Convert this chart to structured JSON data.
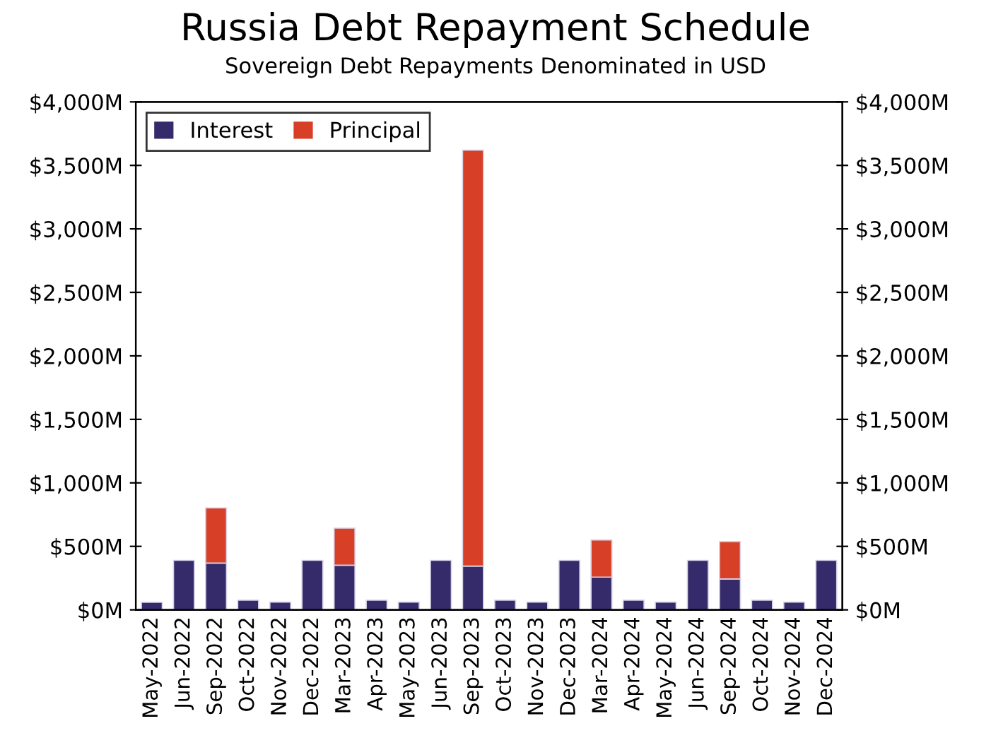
{
  "chart_data": {
    "type": "bar",
    "stacked": true,
    "title": "Russia Debt Repayment Schedule",
    "subtitle": "Sovereign Debt Repayments Denominated in USD",
    "categories": [
      "May-2022",
      "Jun-2022",
      "Sep-2022",
      "Oct-2022",
      "Nov-2022",
      "Dec-2022",
      "Mar-2023",
      "Apr-2023",
      "May-2023",
      "Jun-2023",
      "Sep-2023",
      "Oct-2023",
      "Nov-2023",
      "Dec-2023",
      "Mar-2024",
      "Apr-2024",
      "May-2024",
      "Jun-2024",
      "Sep-2024",
      "Oct-2024",
      "Nov-2024",
      "Dec-2024"
    ],
    "series": [
      {
        "name": "Interest",
        "color": "#352a6a",
        "values": [
          60,
          390,
          368,
          76,
          61,
          390,
          352,
          76,
          61,
          390,
          345,
          76,
          61,
          390,
          258,
          76,
          61,
          390,
          243,
          76,
          61,
          390
        ]
      },
      {
        "name": "Principal",
        "color": "#d83f27",
        "values": [
          null,
          null,
          435,
          null,
          null,
          null,
          292,
          null,
          null,
          null,
          3275,
          null,
          null,
          null,
          292,
          null,
          null,
          null,
          295,
          null,
          null,
          null
        ]
      }
    ],
    "ylim": [
      0,
      4000
    ],
    "yticks": [
      {
        "value": 0,
        "label": "$0M"
      },
      {
        "value": 500,
        "label": "$500M"
      },
      {
        "value": 1000,
        "label": "$1,000M"
      },
      {
        "value": 1500,
        "label": "$1,500M"
      },
      {
        "value": 2000,
        "label": "$2,000M"
      },
      {
        "value": 2500,
        "label": "$2,500M"
      },
      {
        "value": 3000,
        "label": "$3,000M"
      },
      {
        "value": 3500,
        "label": "$3,500M"
      },
      {
        "value": 4000,
        "label": "$4,000M"
      }
    ],
    "y2lim": [
      0,
      4000
    ],
    "y2ticks": [
      {
        "value": 0,
        "label": "$0M"
      },
      {
        "value": 500,
        "label": "$500M"
      },
      {
        "value": 1000,
        "label": "$1,000M"
      },
      {
        "value": 1500,
        "label": "$1,500M"
      },
      {
        "value": 2000,
        "label": "$2,000M"
      },
      {
        "value": 2500,
        "label": "$2,500M"
      },
      {
        "value": 3000,
        "label": "$3,000M"
      },
      {
        "value": 3500,
        "label": "$3,500M"
      },
      {
        "value": 4000,
        "label": "$4,000M"
      }
    ],
    "grid": false,
    "legend": "top left"
  }
}
